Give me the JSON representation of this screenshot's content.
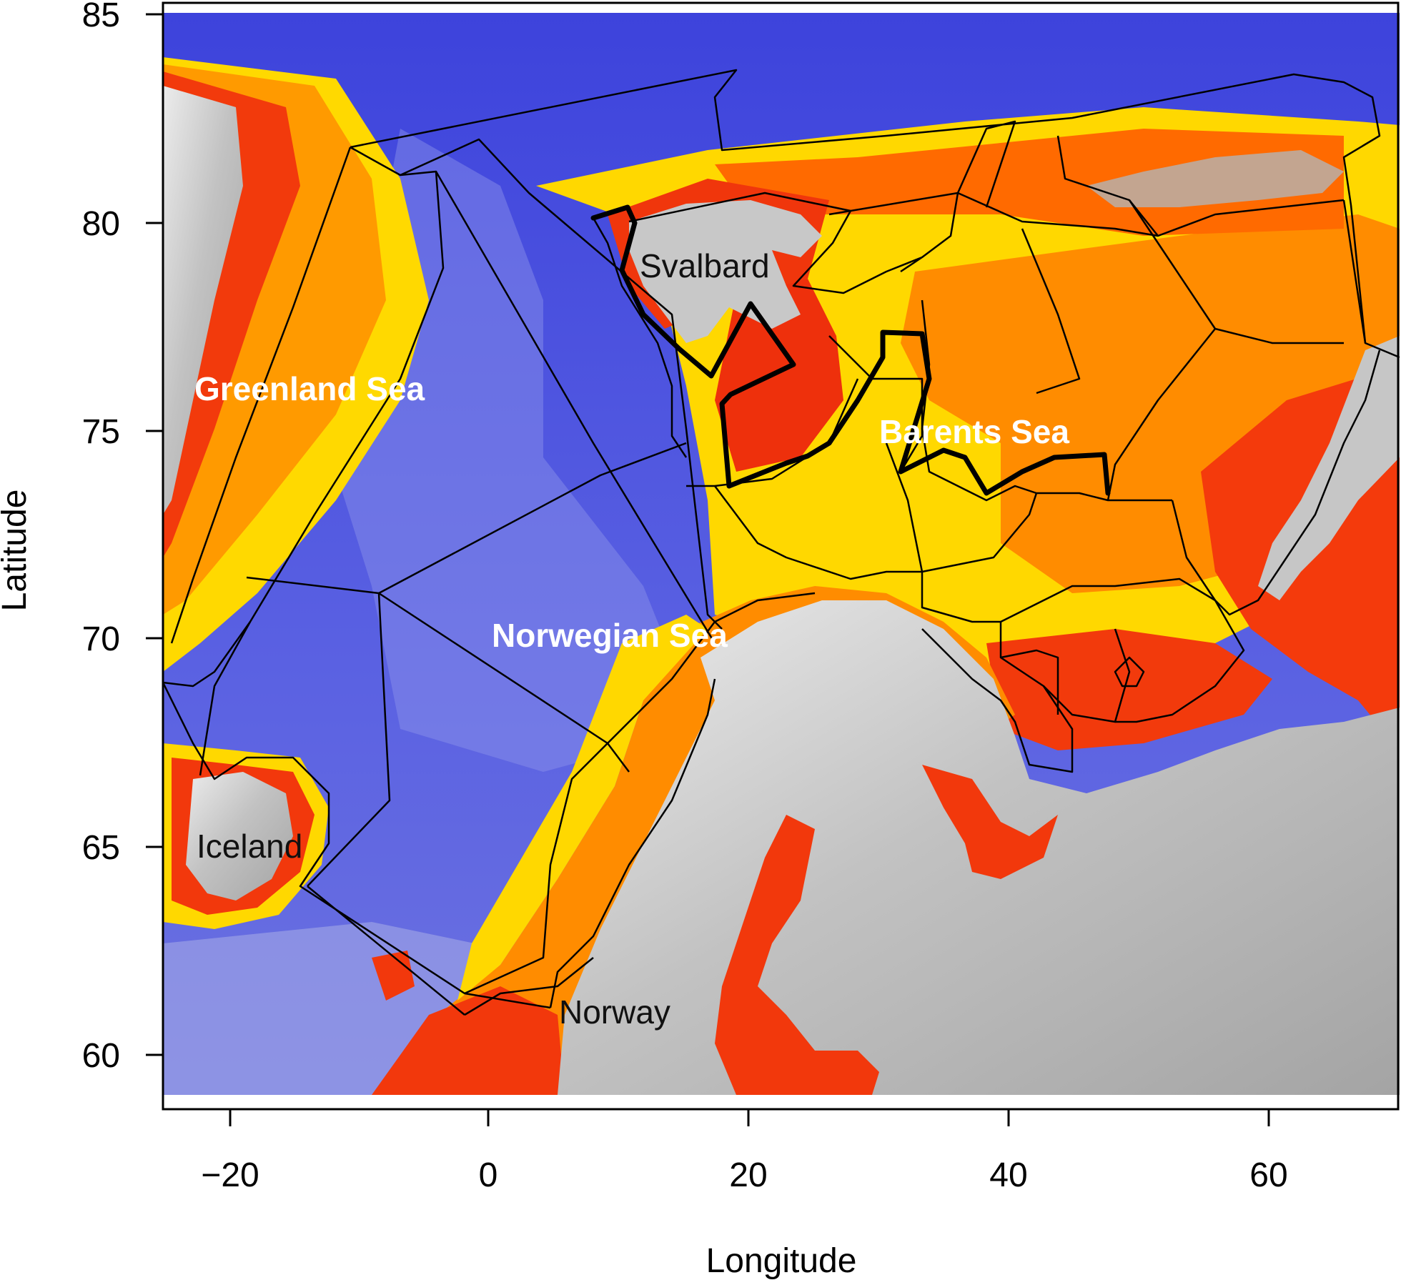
{
  "axes": {
    "xlabel": "Longitude",
    "ylabel": "Latitude",
    "x_ticks": [
      "−20",
      "0",
      "20",
      "40",
      "60"
    ],
    "y_ticks": [
      "85",
      "80",
      "75",
      "70",
      "65",
      "60"
    ]
  },
  "places": {
    "svalbard": "Svalbard",
    "greenland_sea": "Greenland Sea",
    "barents_sea": "Barents Sea",
    "norwegian_sea": "Norwegian Sea",
    "iceland": "Iceland",
    "norway": "Norway"
  },
  "colors": {
    "deep_ocean": "#4a4fe0",
    "mid_ocean": "#8f96e8",
    "shallow_yellow": "#ffe000",
    "shelf_orange": "#ff8a00",
    "coastal_red": "#f02a0a",
    "land_gray": "#a8a8a8",
    "land_light": "#e6e6e6"
  }
}
